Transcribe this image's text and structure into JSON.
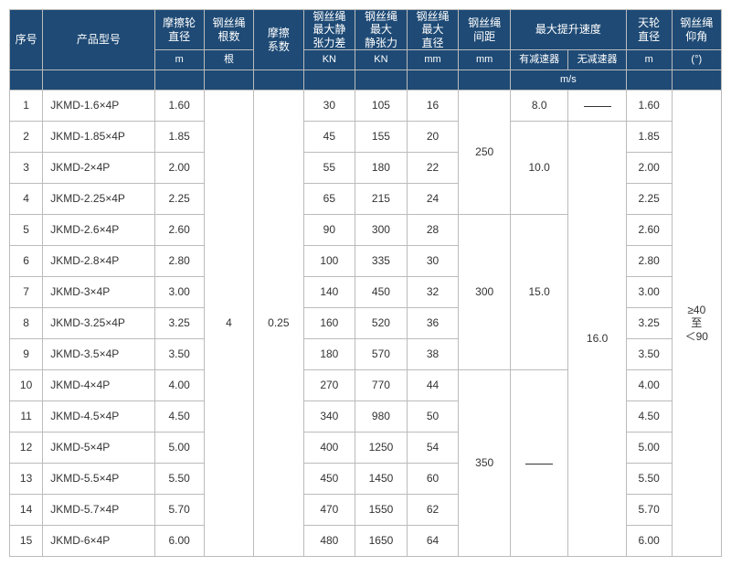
{
  "header": {
    "seq": "序号",
    "model": "产品型号",
    "wheel_dia": "摩擦轮\n直径",
    "rope_count": "钢丝绳\n根数",
    "friction": "摩擦\n系数",
    "max_tension_diff": "钢丝绳\n最大静\n张力差",
    "max_tension": "钢丝绳\n最大\n静张力",
    "rope_dia": "钢丝绳\n最大\n直径",
    "rope_spacing": "钢丝绳\n间距",
    "max_speed": "最大提升速度",
    "speed_with": "有减速器",
    "speed_without": "无减速器",
    "sky_wheel": "天轮\n直径",
    "elev_angle": "钢丝绳\n仰角",
    "units": {
      "wheel_dia": "m",
      "rope_count": "根",
      "friction": "",
      "max_tension_diff": "KN",
      "max_tension": "KN",
      "rope_dia": "mm",
      "rope_spacing": "mm",
      "speed": "m/s",
      "sky_wheel": "m",
      "elev_angle": "(°)"
    }
  },
  "common": {
    "rope_count": "4",
    "friction": "0.25",
    "elev_angle": "≥40\n至\n＜90",
    "speed_without": "16.0"
  },
  "groups": [
    {
      "spacing": "250",
      "speed_with_rows": [
        {
          "val": "8.0",
          "span": 1
        },
        {
          "val": "10.0",
          "span": 3
        }
      ]
    },
    {
      "spacing": "300",
      "speed_with_rows": [
        {
          "val": "15.0",
          "span": 5
        }
      ]
    },
    {
      "spacing": "350",
      "speed_with_rows": [
        {
          "val": "DASH",
          "span": 6
        }
      ]
    }
  ],
  "rows": [
    {
      "n": "1",
      "model": "JKMD-1.6×4P",
      "wd": "1.60",
      "td": "30",
      "t": "105",
      "rd": "16",
      "sw": "1.60"
    },
    {
      "n": "2",
      "model": "JKMD-1.85×4P",
      "wd": "1.85",
      "td": "45",
      "t": "155",
      "rd": "20",
      "sw": "1.85"
    },
    {
      "n": "3",
      "model": "JKMD-2×4P",
      "wd": "2.00",
      "td": "55",
      "t": "180",
      "rd": "22",
      "sw": "2.00"
    },
    {
      "n": "4",
      "model": "JKMD-2.25×4P",
      "wd": "2.25",
      "td": "65",
      "t": "215",
      "rd": "24",
      "sw": "2.25"
    },
    {
      "n": "5",
      "model": "JKMD-2.6×4P",
      "wd": "2.60",
      "td": "90",
      "t": "300",
      "rd": "28",
      "sw": "2.60"
    },
    {
      "n": "6",
      "model": "JKMD-2.8×4P",
      "wd": "2.80",
      "td": "100",
      "t": "335",
      "rd": "30",
      "sw": "2.80"
    },
    {
      "n": "7",
      "model": "JKMD-3×4P",
      "wd": "3.00",
      "td": "140",
      "t": "450",
      "rd": "32",
      "sw": "3.00"
    },
    {
      "n": "8",
      "model": "JKMD-3.25×4P",
      "wd": "3.25",
      "td": "160",
      "t": "520",
      "rd": "36",
      "sw": "3.25"
    },
    {
      "n": "9",
      "model": "JKMD-3.5×4P",
      "wd": "3.50",
      "td": "180",
      "t": "570",
      "rd": "38",
      "sw": "3.50"
    },
    {
      "n": "10",
      "model": "JKMD-4×4P",
      "wd": "4.00",
      "td": "270",
      "t": "770",
      "rd": "44",
      "sw": "4.00"
    },
    {
      "n": "11",
      "model": "JKMD-4.5×4P",
      "wd": "4.50",
      "td": "340",
      "t": "980",
      "rd": "50",
      "sw": "4.50"
    },
    {
      "n": "12",
      "model": "JKMD-5×4P",
      "wd": "5.00",
      "td": "400",
      "t": "1250",
      "rd": "54",
      "sw": "5.00"
    },
    {
      "n": "13",
      "model": "JKMD-5.5×4P",
      "wd": "5.50",
      "td": "450",
      "t": "1450",
      "rd": "60",
      "sw": "5.50"
    },
    {
      "n": "14",
      "model": "JKMD-5.7×4P",
      "wd": "5.70",
      "td": "470",
      "t": "1550",
      "rd": "62",
      "sw": "5.70"
    },
    {
      "n": "15",
      "model": "JKMD-6×4P",
      "wd": "6.00",
      "td": "480",
      "t": "1650",
      "rd": "64",
      "sw": "6.00"
    }
  ],
  "colwidths": {
    "seq": 32,
    "model": 108,
    "wd": 48,
    "rc": 48,
    "fc": 48,
    "td": 50,
    "t": 50,
    "rd": 50,
    "sp": 50,
    "sw1": 56,
    "sw2": 56,
    "skyw": 44,
    "ang": 48
  },
  "colors": {
    "header_bg": "#1e4a75",
    "header_fg": "#ffffff",
    "border": "#bbbbbb",
    "text": "#333333"
  }
}
